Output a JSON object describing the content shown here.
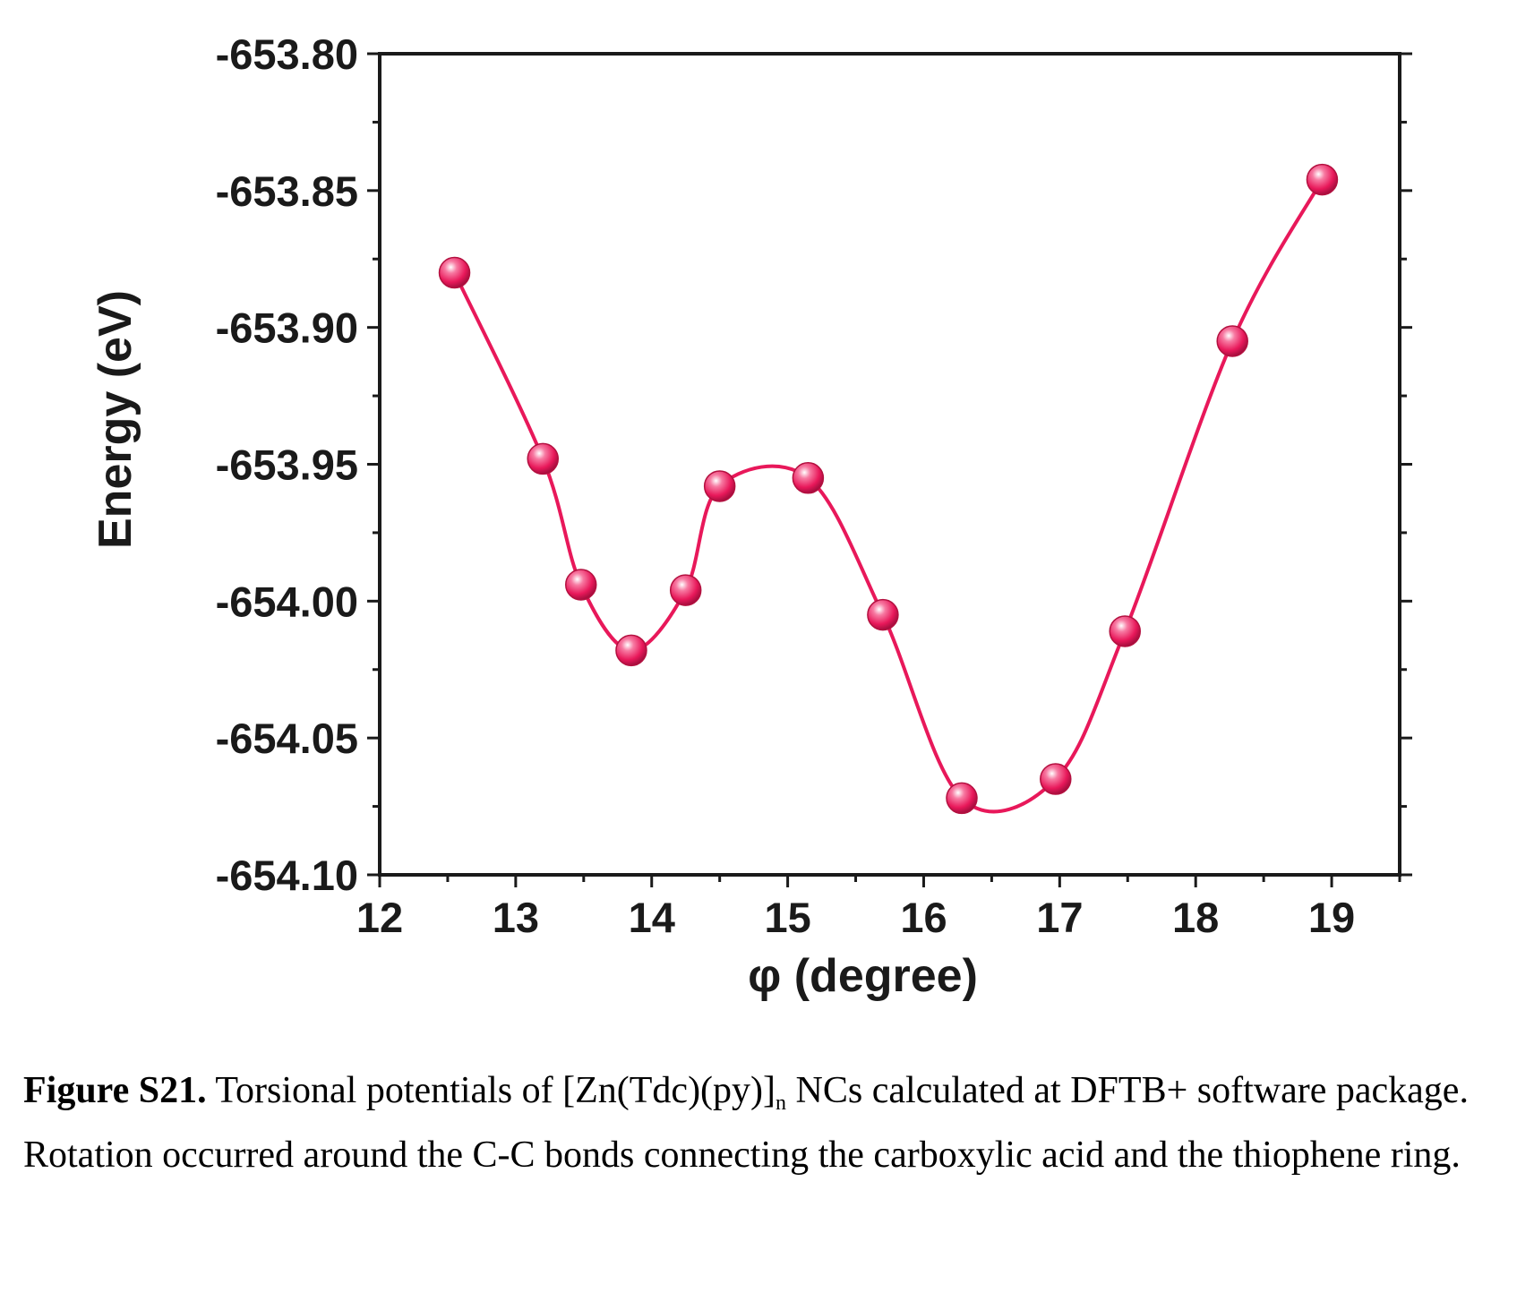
{
  "chart_data": {
    "type": "line",
    "xlabel": "φ (degree)",
    "ylabel": "Energy (eV)",
    "xlim": [
      12,
      19.5
    ],
    "ylim": [
      -654.1,
      -653.8
    ],
    "x_ticks": [
      12,
      13,
      14,
      15,
      16,
      17,
      18,
      19
    ],
    "x_tick_labels": [
      "12",
      "13",
      "14",
      "15",
      "16",
      "17",
      "18",
      "19"
    ],
    "y_ticks": [
      -653.8,
      -653.85,
      -653.9,
      -653.95,
      -654.0,
      -654.05,
      -654.1
    ],
    "y_tick_labels": [
      "-653.80",
      "-653.85",
      "-653.90",
      "-653.95",
      "-654.00",
      "-654.05",
      "-654.10"
    ],
    "grid": false,
    "smooth": true,
    "series": [
      {
        "x": [
          12.55,
          13.2,
          13.48,
          13.85,
          14.25,
          14.5,
          15.15,
          15.7,
          16.28,
          16.97,
          17.48,
          18.27,
          18.93
        ],
        "y": [
          -653.88,
          -653.948,
          -653.994,
          -654.018,
          -653.996,
          -653.958,
          -653.955,
          -654.005,
          -654.072,
          -654.065,
          -654.011,
          -653.905,
          -653.846
        ],
        "color": "#e8185a"
      }
    ]
  },
  "caption": {
    "figure_number": "Figure S21.",
    "text_before_sub": " Torsional potentials of [Zn(Tdc)(py)]",
    "subscript": "n",
    "text_after_sub": " NCs calculated at DFTB+ software package. Rotation occurred around the C-C bonds connecting the carboxylic acid and the thiophene ring."
  }
}
